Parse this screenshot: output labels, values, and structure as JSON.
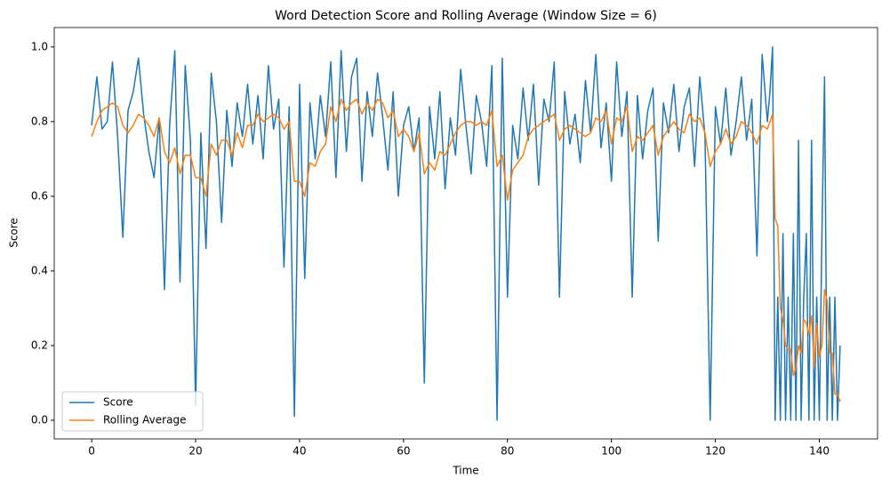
{
  "chart_data": {
    "type": "line",
    "title": "Word Detection Score and Rolling Average (Window Size = 6)",
    "xlabel": "Time",
    "ylabel": "Score",
    "xlim": [
      -7.2,
      151.2
    ],
    "ylim": [
      -0.05,
      1.052
    ],
    "xticks": [
      0,
      20,
      40,
      60,
      80,
      100,
      120,
      140
    ],
    "yticks": [
      {
        "value": 0,
        "label": "0.0"
      },
      0.2,
      0.4,
      0.6,
      0.8,
      {
        "value": 1,
        "label": "1.0"
      }
    ],
    "legend": "lower left",
    "x": [
      0,
      1,
      2,
      3,
      4,
      5,
      6,
      7,
      8,
      9,
      10,
      11,
      12,
      13,
      14,
      15,
      16,
      17,
      18,
      19,
      20,
      21,
      22,
      23,
      24,
      25,
      26,
      27,
      28,
      29,
      30,
      31,
      32,
      33,
      34,
      35,
      36,
      37,
      38,
      39,
      40,
      41,
      42,
      43,
      44,
      45,
      46,
      47,
      48,
      49,
      50,
      51,
      52,
      53,
      54,
      55,
      56,
      57,
      58,
      59,
      60,
      61,
      62,
      63,
      64,
      65,
      66,
      67,
      68,
      69,
      70,
      71,
      72,
      73,
      74,
      75,
      76,
      77,
      78,
      79,
      80,
      81,
      82,
      83,
      84,
      85,
      86,
      87,
      88,
      89,
      90,
      91,
      92,
      93,
      94,
      95,
      96,
      97,
      98,
      99,
      100,
      101,
      102,
      103,
      104,
      105,
      106,
      107,
      108,
      109,
      110,
      111,
      112,
      113,
      114,
      115,
      116,
      117,
      118,
      119,
      120,
      121,
      122,
      123,
      124,
      125,
      126,
      127,
      128,
      129,
      130,
      130.5,
      131,
      131.5,
      132,
      132.5,
      133,
      133.5,
      134,
      134.5,
      135,
      135.5,
      136,
      136.5,
      137,
      137.5,
      138,
      138.5,
      139,
      139.5,
      140,
      140.5,
      141,
      141.5,
      142,
      142.5,
      143,
      143.5,
      144
    ],
    "series": [
      {
        "name": "Score",
        "color": "#1f77b4",
        "values": [
          0.79,
          0.92,
          0.78,
          0.8,
          0.96,
          0.76,
          0.49,
          0.83,
          0.88,
          0.97,
          0.82,
          0.72,
          0.65,
          0.81,
          0.35,
          0.79,
          0.99,
          0.37,
          0.95,
          0.75,
          0.04,
          0.77,
          0.46,
          0.93,
          0.8,
          0.53,
          0.83,
          0.68,
          0.85,
          0.76,
          0.9,
          0.74,
          0.87,
          0.7,
          0.95,
          0.78,
          0.86,
          0.41,
          0.84,
          0.01,
          0.9,
          0.38,
          0.85,
          0.7,
          0.87,
          0.76,
          0.96,
          0.65,
          0.99,
          0.72,
          0.92,
          0.97,
          0.64,
          0.88,
          0.76,
          0.93,
          0.81,
          0.67,
          0.88,
          0.6,
          0.79,
          0.84,
          0.72,
          0.81,
          0.1,
          0.84,
          0.7,
          0.88,
          0.62,
          0.81,
          0.71,
          0.94,
          0.79,
          0.66,
          0.87,
          0.8,
          0.68,
          0.95,
          0.0,
          0.97,
          0.33,
          0.79,
          0.7,
          0.89,
          0.75,
          0.9,
          0.63,
          0.86,
          0.8,
          0.96,
          0.33,
          0.88,
          0.74,
          0.82,
          0.69,
          0.91,
          0.77,
          0.98,
          0.73,
          0.85,
          0.64,
          0.96,
          0.76,
          0.88,
          0.33,
          0.87,
          0.7,
          0.83,
          0.89,
          0.48,
          0.85,
          0.77,
          0.9,
          0.72,
          0.84,
          0.89,
          0.68,
          0.92,
          0.76,
          0.0,
          0.84,
          0.74,
          0.89,
          0.71,
          0.8,
          0.92,
          0.75,
          0.86,
          0.44,
          0.98,
          0.8,
          0.88,
          1.0,
          0.0,
          0.33,
          0.0,
          0.5,
          0.0,
          0.33,
          0.0,
          0.5,
          0.0,
          0.75,
          0.0,
          0.33,
          0.5,
          0.0,
          0.75,
          0.0,
          0.33,
          0.0,
          0.5,
          0.92,
          0.0,
          0.33,
          0.0,
          0.33,
          0.0,
          0.2
        ]
      },
      {
        "name": "Rolling Average",
        "color": "#ff7f0e",
        "values": [
          0.76,
          0.8,
          0.83,
          0.84,
          0.85,
          0.84,
          0.79,
          0.77,
          0.79,
          0.82,
          0.81,
          0.79,
          0.76,
          0.81,
          0.72,
          0.69,
          0.73,
          0.66,
          0.71,
          0.71,
          0.65,
          0.65,
          0.6,
          0.74,
          0.71,
          0.75,
          0.75,
          0.71,
          0.77,
          0.73,
          0.79,
          0.79,
          0.82,
          0.8,
          0.81,
          0.82,
          0.81,
          0.78,
          0.8,
          0.64,
          0.64,
          0.6,
          0.69,
          0.68,
          0.72,
          0.74,
          0.84,
          0.8,
          0.86,
          0.83,
          0.85,
          0.86,
          0.82,
          0.85,
          0.83,
          0.86,
          0.85,
          0.81,
          0.83,
          0.76,
          0.78,
          0.76,
          0.72,
          0.77,
          0.66,
          0.69,
          0.67,
          0.72,
          0.71,
          0.74,
          0.77,
          0.79,
          0.8,
          0.8,
          0.79,
          0.8,
          0.79,
          0.83,
          0.68,
          0.71,
          0.59,
          0.67,
          0.69,
          0.71,
          0.76,
          0.78,
          0.79,
          0.8,
          0.81,
          0.82,
          0.75,
          0.78,
          0.79,
          0.78,
          0.77,
          0.76,
          0.77,
          0.81,
          0.8,
          0.83,
          0.74,
          0.81,
          0.8,
          0.84,
          0.72,
          0.76,
          0.75,
          0.77,
          0.79,
          0.71,
          0.76,
          0.78,
          0.8,
          0.78,
          0.77,
          0.82,
          0.8,
          0.81,
          0.77,
          0.68,
          0.72,
          0.74,
          0.78,
          0.74,
          0.76,
          0.8,
          0.79,
          0.77,
          0.74,
          0.79,
          0.78,
          0.8,
          0.82,
          0.54,
          0.52,
          0.3,
          0.27,
          0.2,
          0.19,
          0.19,
          0.12,
          0.14,
          0.2,
          0.18,
          0.27,
          0.26,
          0.23,
          0.28,
          0.14,
          0.26,
          0.17,
          0.2,
          0.35,
          0.32,
          0.18,
          0.18,
          0.07,
          0.07,
          0.05
        ]
      }
    ]
  }
}
